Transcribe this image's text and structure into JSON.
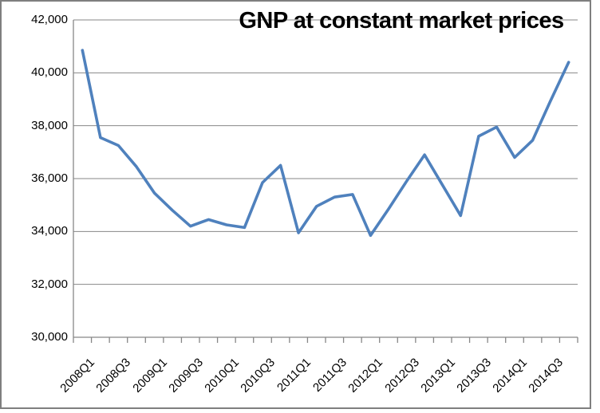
{
  "title": "GNP at constant market prices",
  "colors": {
    "series_line": "#4F81BD",
    "gridline": "#878787",
    "axis": "#878787",
    "text": "#000000",
    "frame_border": "#7F7F7F",
    "background": "#FFFFFF"
  },
  "chart_data": {
    "type": "line",
    "title": "GNP at constant market prices",
    "x": [
      "2008Q1",
      "2008Q2",
      "2008Q3",
      "2008Q4",
      "2009Q1",
      "2009Q2",
      "2009Q3",
      "2009Q4",
      "2010Q1",
      "2010Q2",
      "2010Q3",
      "2010Q4",
      "2011Q1",
      "2011Q2",
      "2011Q3",
      "2011Q4",
      "2012Q1",
      "2012Q2",
      "2012Q3",
      "2012Q4",
      "2013Q1",
      "2013Q2",
      "2013Q3",
      "2013Q4",
      "2014Q1",
      "2014Q2",
      "2014Q3",
      "2014Q4"
    ],
    "values": [
      40850,
      37550,
      37250,
      36450,
      35450,
      34800,
      34200,
      34450,
      34250,
      34150,
      35850,
      36500,
      33950,
      34950,
      35300,
      35400,
      33850,
      34850,
      35900,
      36900,
      35750,
      34600,
      37600,
      37950,
      36800,
      37450,
      38950,
      40400
    ],
    "xlabel": "",
    "ylabel": "",
    "ylim": [
      30000,
      42000
    ],
    "ytick_interval": 2000,
    "ytick_labels_top_to_bottom": [
      "42,000",
      "40,000",
      "38,000",
      "36,000",
      "34,000",
      "32,000",
      "30,000"
    ],
    "xtick_label_step": 2,
    "xtick_labels_shown": [
      "2008Q1",
      "2008Q3",
      "2009Q1",
      "2009Q3",
      "2010Q1",
      "2010Q3",
      "2011Q1",
      "2011Q3",
      "2012Q1",
      "2012Q3",
      "2013Q1",
      "2013Q3",
      "2014Q1",
      "2014Q3"
    ],
    "grid": true,
    "legend_position": "none",
    "marker": "none"
  }
}
